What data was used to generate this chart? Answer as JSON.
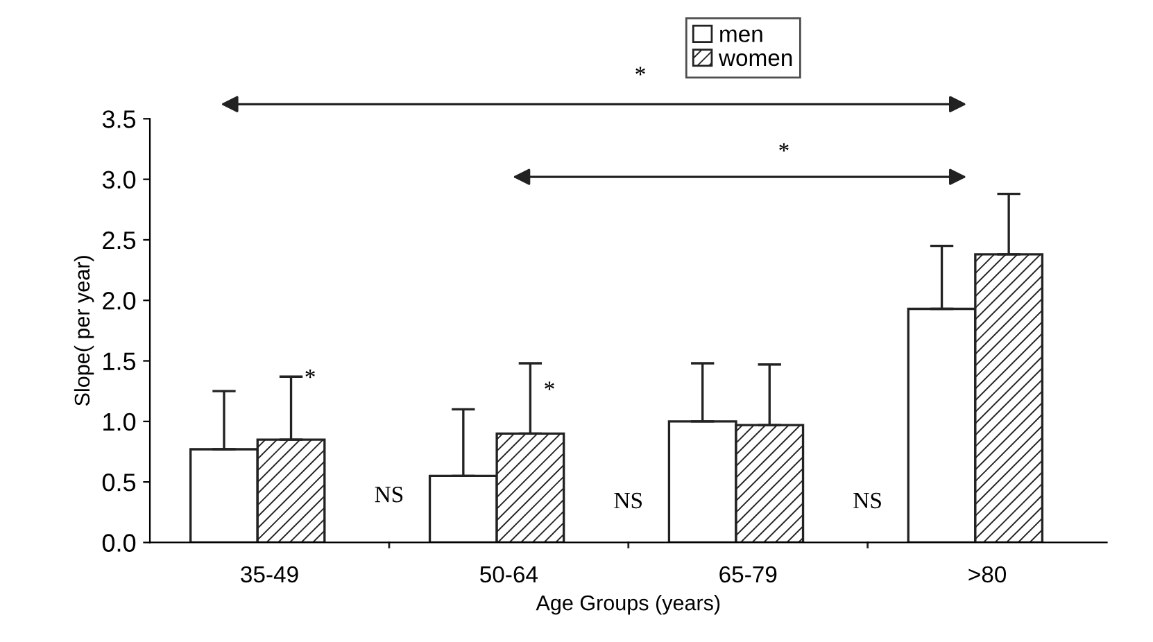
{
  "chart_data": {
    "type": "bar",
    "xlabel": "Age Groups (years)",
    "ylabel": "Slope( per year)",
    "categories": [
      "35-49",
      "50-64",
      "65-79",
      ">80"
    ],
    "series": [
      {
        "name": "men",
        "color": "#ffffff",
        "values": [
          0.77,
          0.55,
          1.0,
          1.93
        ],
        "errors": [
          [
            0.77,
            1.25
          ],
          [
            0.55,
            1.1
          ],
          [
            1.0,
            1.48
          ],
          [
            1.93,
            2.45
          ]
        ]
      },
      {
        "name": "women",
        "color": "#222222",
        "values": [
          0.85,
          0.9,
          0.97,
          2.38
        ],
        "errors": [
          [
            0.85,
            1.37
          ],
          [
            0.9,
            1.48
          ],
          [
            0.97,
            1.47
          ],
          [
            2.38,
            2.88
          ]
        ]
      }
    ],
    "ylim": [
      0,
      3.5
    ],
    "yticks": [
      {
        "value": 0,
        "label": "0.0"
      },
      {
        "value": 0.5,
        "label": "0.5"
      },
      {
        "value": 1,
        "label": "1.0"
      },
      {
        "value": 1.5,
        "label": "1.5"
      },
      {
        "value": 2,
        "label": "2.0"
      },
      {
        "value": 2.5,
        "label": "2.5"
      },
      {
        "value": 3,
        "label": "3.0"
      },
      {
        "value": 3.5,
        "label": "3.5"
      }
    ],
    "grid": false,
    "legend": "top",
    "annotations": [
      "*",
      "*",
      "*",
      "*",
      "NS",
      "NS",
      "NS"
    ]
  }
}
